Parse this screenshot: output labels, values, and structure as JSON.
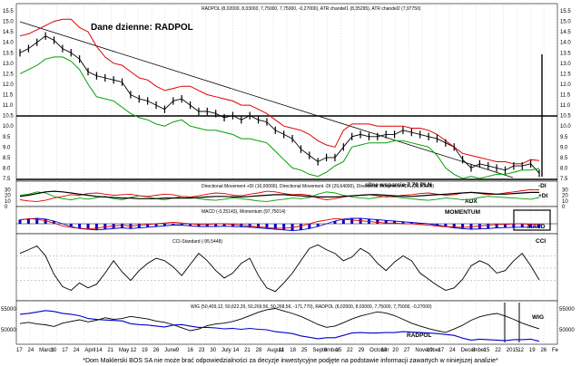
{
  "colors": {
    "price": "#000000",
    "upper_band": "#e00000",
    "lower_band": "#00a000",
    "trendline": "#000000",
    "di_plus": "#00a000",
    "di_minus": "#e00000",
    "adx": "#000000",
    "macd": "#0000c8",
    "momentum": "#e00000",
    "wig": "#000000",
    "radpol_overlay": "#0000c8",
    "label_red": "#d00000",
    "label_blue": "#0000c8"
  },
  "footer": "*Dom Maklerski BOS SA nie może brać odpowiedzialności za decyzje inwestycyjne podjęte na podstawie informacji zawartych w niniejszej analizie*",
  "chart_data": [
    {
      "type": "line",
      "title": "Dane dzienne: RADPOL",
      "legend": "RADPOL (8,02000, 8,03000, 7,75000, 7,75000, -0,27000), ATR chandel1 (8,35295), ATR chandel2 (7,97750)",
      "ylim": [
        7.5,
        15.5
      ],
      "y_ticks": [
        "15.5",
        "15.0",
        "14.5",
        "14.0",
        "13.5",
        "13.0",
        "12.5",
        "12.0",
        "11.5",
        "11.0",
        "10.5",
        "10.0",
        "9.5",
        "9.0",
        "8.5",
        "8.0",
        "7.5"
      ],
      "horizontal_levels": [
        10.0,
        7.7
      ],
      "annotation": "silne wsparcie 7,70 PLN",
      "x_labels": [
        "17",
        "24",
        "March",
        "10",
        "17",
        "24",
        "April",
        "14",
        "21",
        "May",
        "12",
        "19",
        "26",
        "June",
        "9",
        "16",
        "23",
        "30",
        "July",
        "14",
        "21",
        "28",
        "August",
        "11",
        "18",
        "25",
        "September",
        "8",
        "15",
        "22",
        "29",
        "October",
        "13",
        "20",
        "27",
        "November",
        "10",
        "17",
        "24",
        "December",
        "8",
        "15",
        "22",
        "2015",
        "12",
        "19",
        "26",
        "Fe"
      ],
      "series": [
        {
          "name": "RADPOL",
          "values": [
            13.5,
            13.7,
            14.0,
            14.3,
            14.1,
            13.7,
            13.5,
            13.2,
            12.6,
            12.4,
            12.3,
            12.2,
            12.1,
            11.5,
            11.3,
            11.2,
            11.0,
            10.8,
            11.2,
            11.3,
            11.0,
            10.7,
            10.7,
            10.6,
            10.4,
            10.5,
            10.3,
            10.5,
            10.3,
            10.2,
            9.8,
            9.6,
            9.4,
            8.9,
            8.6,
            8.3,
            8.5,
            8.5,
            9.0,
            9.5,
            9.6,
            9.5,
            9.5,
            9.6,
            9.6,
            9.8,
            9.7,
            9.6,
            9.5,
            9.4,
            9.2,
            9.0,
            8.4,
            8.0,
            8.2,
            8.1,
            8.0,
            7.9,
            8.1,
            8.1,
            8.2,
            7.75
          ]
        },
        {
          "name": "ATR chandel1",
          "values": [
            14.3,
            14.4,
            14.6,
            14.8,
            15.0,
            15.1,
            15.1,
            14.7,
            14.5,
            13.8,
            13.3,
            13.0,
            12.9,
            12.6,
            12.3,
            12.2,
            11.9,
            11.7,
            11.8,
            11.9,
            11.9,
            11.7,
            11.5,
            11.4,
            11.3,
            11.2,
            11.0,
            11.0,
            10.8,
            10.6,
            10.3,
            10.0,
            9.9,
            9.8,
            9.6,
            9.3,
            9.1,
            9.0,
            9.8,
            10.1,
            10.1,
            10.1,
            10.0,
            10.0,
            10.0,
            10.0,
            9.9,
            9.9,
            9.8,
            9.6,
            9.3,
            9.0,
            8.7,
            8.6,
            8.5,
            8.4,
            8.3,
            8.3,
            8.2,
            8.2,
            8.4,
            8.35
          ]
        },
        {
          "name": "ATR chandel2",
          "values": [
            12.5,
            12.7,
            12.9,
            13.2,
            13.3,
            13.3,
            13.1,
            12.7,
            12.0,
            11.4,
            11.3,
            11.2,
            10.9,
            10.6,
            10.4,
            10.3,
            10.1,
            10.0,
            10.2,
            10.3,
            10.0,
            9.9,
            9.8,
            9.8,
            9.7,
            9.6,
            9.4,
            9.4,
            9.3,
            9.2,
            8.8,
            8.4,
            8.0,
            7.9,
            7.7,
            7.6,
            7.8,
            8.1,
            8.3,
            9.0,
            9.1,
            9.2,
            9.2,
            9.2,
            9.3,
            9.3,
            9.2,
            9.1,
            9.0,
            8.6,
            8.0,
            7.7,
            7.5,
            7.6,
            7.5,
            7.6,
            7.7,
            7.7,
            7.8,
            7.9,
            7.9,
            7.98
          ]
        }
      ]
    },
    {
      "type": "line",
      "legend": "Directional Movement +DI (16,00000), Directional Movement -DI (29,64000), Directional Movement ADX (25,00000)",
      "ylim": [
        0,
        40
      ],
      "y_ticks": [
        "30",
        "20",
        "10",
        "0"
      ],
      "labels": {
        "adx": "ADX",
        "di_minus": "-DI",
        "di_plus": "+DI"
      },
      "series": [
        {
          "name": "+DI",
          "values": [
            20,
            22,
            26,
            24,
            18,
            14,
            12,
            15,
            13,
            16,
            18,
            14,
            12,
            16,
            19,
            17,
            14,
            12,
            15,
            18,
            17,
            14,
            12,
            11,
            13,
            15,
            14,
            12,
            10,
            9,
            11,
            13,
            15,
            14,
            16,
            22,
            26,
            24,
            20,
            17,
            15,
            14,
            16,
            18,
            17,
            15,
            14,
            12,
            11,
            13,
            15,
            14,
            12,
            13,
            16,
            18,
            17,
            16,
            15,
            14,
            13,
            16
          ]
        },
        {
          "name": "-DI",
          "values": [
            12,
            10,
            9,
            11,
            15,
            18,
            21,
            20,
            23,
            24,
            22,
            20,
            21,
            22,
            19,
            18,
            20,
            22,
            21,
            18,
            17,
            19,
            22,
            24,
            23,
            20,
            19,
            22,
            24,
            27,
            26,
            23,
            21,
            22,
            20,
            15,
            12,
            14,
            17,
            19,
            20,
            21,
            19,
            17,
            18,
            20,
            21,
            23,
            24,
            22,
            20,
            21,
            24,
            25,
            23,
            21,
            22,
            24,
            26,
            28,
            30,
            29.6
          ]
        },
        {
          "name": "ADX",
          "values": [
            18,
            20,
            23,
            26,
            27,
            26,
            24,
            22,
            20,
            18,
            17,
            16,
            15,
            15,
            14,
            14,
            14,
            15,
            15,
            15,
            15,
            16,
            17,
            18,
            18,
            17,
            17,
            18,
            19,
            20,
            21,
            21,
            20,
            19,
            18,
            17,
            17,
            17,
            18,
            19,
            20,
            21,
            21,
            20,
            19,
            18,
            18,
            19,
            20,
            21,
            22,
            23,
            24,
            25,
            24,
            23,
            22,
            22,
            23,
            24,
            25,
            25
          ]
        }
      ]
    },
    {
      "type": "line",
      "legend": "MACD (-0,25143), Momentum (97,75014)",
      "labels": {
        "momentum": "MOMENTUM",
        "macd": "MACD"
      },
      "series": [
        {
          "name": "MACD",
          "values": [
            0.3,
            0.35,
            0.4,
            0.35,
            0.2,
            0.0,
            -0.2,
            -0.35,
            -0.4,
            -0.45,
            -0.4,
            -0.35,
            -0.3,
            -0.35,
            -0.3,
            -0.25,
            -0.2,
            -0.15,
            -0.1,
            -0.1,
            -0.15,
            -0.2,
            -0.2,
            -0.2,
            -0.18,
            -0.2,
            -0.22,
            -0.25,
            -0.3,
            -0.35,
            -0.4,
            -0.45,
            -0.5,
            -0.45,
            -0.35,
            -0.2,
            0.0,
            0.2,
            0.35,
            0.4,
            0.4,
            0.35,
            0.3,
            0.25,
            0.2,
            0.15,
            0.1,
            0.05,
            0.0,
            -0.1,
            -0.2,
            -0.3,
            -0.35,
            -0.4,
            -0.38,
            -0.35,
            -0.3,
            -0.28,
            -0.26,
            -0.25,
            -0.25,
            -0.25
          ]
        },
        {
          "name": "Momentum",
          "values": [
            104,
            106,
            105,
            103,
            100,
            96,
            94,
            93,
            92,
            93,
            95,
            96,
            97,
            96,
            97,
            98,
            99,
            100,
            101,
            100,
            99,
            98,
            98,
            99,
            99,
            98,
            97,
            96,
            95,
            94,
            93,
            93,
            94,
            96,
            99,
            102,
            104,
            106,
            105,
            104,
            103,
            102,
            101,
            100,
            100,
            99,
            99,
            98,
            97,
            96,
            95,
            95,
            94,
            95,
            96,
            97,
            98,
            98,
            99,
            99,
            98,
            97.75
          ]
        }
      ]
    },
    {
      "type": "line",
      "legend": "CCI-Standard (-95,5448)",
      "labels": {
        "cci": "CCI"
      },
      "series": [
        {
          "name": "CCI",
          "values": [
            120,
            150,
            180,
            100,
            -50,
            -150,
            -180,
            -120,
            -160,
            -130,
            -40,
            60,
            -30,
            -100,
            -20,
            40,
            80,
            60,
            10,
            -60,
            30,
            120,
            60,
            -20,
            -80,
            -40,
            40,
            80,
            -60,
            -160,
            -190,
            -120,
            -40,
            60,
            160,
            190,
            150,
            120,
            60,
            90,
            160,
            120,
            40,
            -20,
            50,
            100,
            60,
            -40,
            -90,
            -140,
            -180,
            -160,
            -90,
            20,
            60,
            30,
            -40,
            -20,
            60,
            120,
            20,
            -95.5
          ]
        }
      ]
    },
    {
      "type": "line",
      "legend": "WIG (50,409,12, 50,622,29, 50,269,56, 50,268,56, -171,770), RADPOL (8,02000, 8,03000, 7,75000, 7,75000, -0,27000)",
      "y_ticks": [
        "55000",
        "50000"
      ],
      "ylim": [
        47000,
        56500
      ],
      "labels": {
        "wig": "WIG",
        "radpol": "RADPOL"
      },
      "series": [
        {
          "name": "WIG",
          "values": [
            51500,
            51800,
            51400,
            51200,
            50800,
            51600,
            52000,
            52400,
            51900,
            52300,
            52900,
            52500,
            52700,
            53200,
            52900,
            52600,
            52100,
            51800,
            51200,
            50500,
            49800,
            50200,
            51000,
            51400,
            51600,
            52000,
            52600,
            53400,
            54200,
            54800,
            55100,
            54500,
            53900,
            53200,
            52300,
            51300,
            50600,
            50900,
            51700,
            52600,
            53300,
            53800,
            54300,
            54000,
            53400,
            52500,
            51600,
            50900,
            50300,
            49800,
            49400,
            50200,
            51100,
            52300,
            53100,
            53600,
            53900,
            53300,
            52500,
            51600,
            50900,
            50268.56
          ]
        },
        {
          "name": "RADPOL",
          "values": [
            13.5,
            13.7,
            14.0,
            14.3,
            14.1,
            13.7,
            13.5,
            13.2,
            12.6,
            12.4,
            12.3,
            12.2,
            12.1,
            11.5,
            11.3,
            11.2,
            11.0,
            10.8,
            11.2,
            11.3,
            11.0,
            10.7,
            10.7,
            10.6,
            10.4,
            10.5,
            10.3,
            10.5,
            10.3,
            10.2,
            9.8,
            9.6,
            9.4,
            8.9,
            8.6,
            8.3,
            8.5,
            8.5,
            9.0,
            9.5,
            9.6,
            9.5,
            9.5,
            9.6,
            9.6,
            9.8,
            9.7,
            9.6,
            9.5,
            9.4,
            9.2,
            9.0,
            8.4,
            8.0,
            8.2,
            8.1,
            8.0,
            7.9,
            8.1,
            8.1,
            8.2,
            7.75
          ]
        }
      ]
    }
  ]
}
